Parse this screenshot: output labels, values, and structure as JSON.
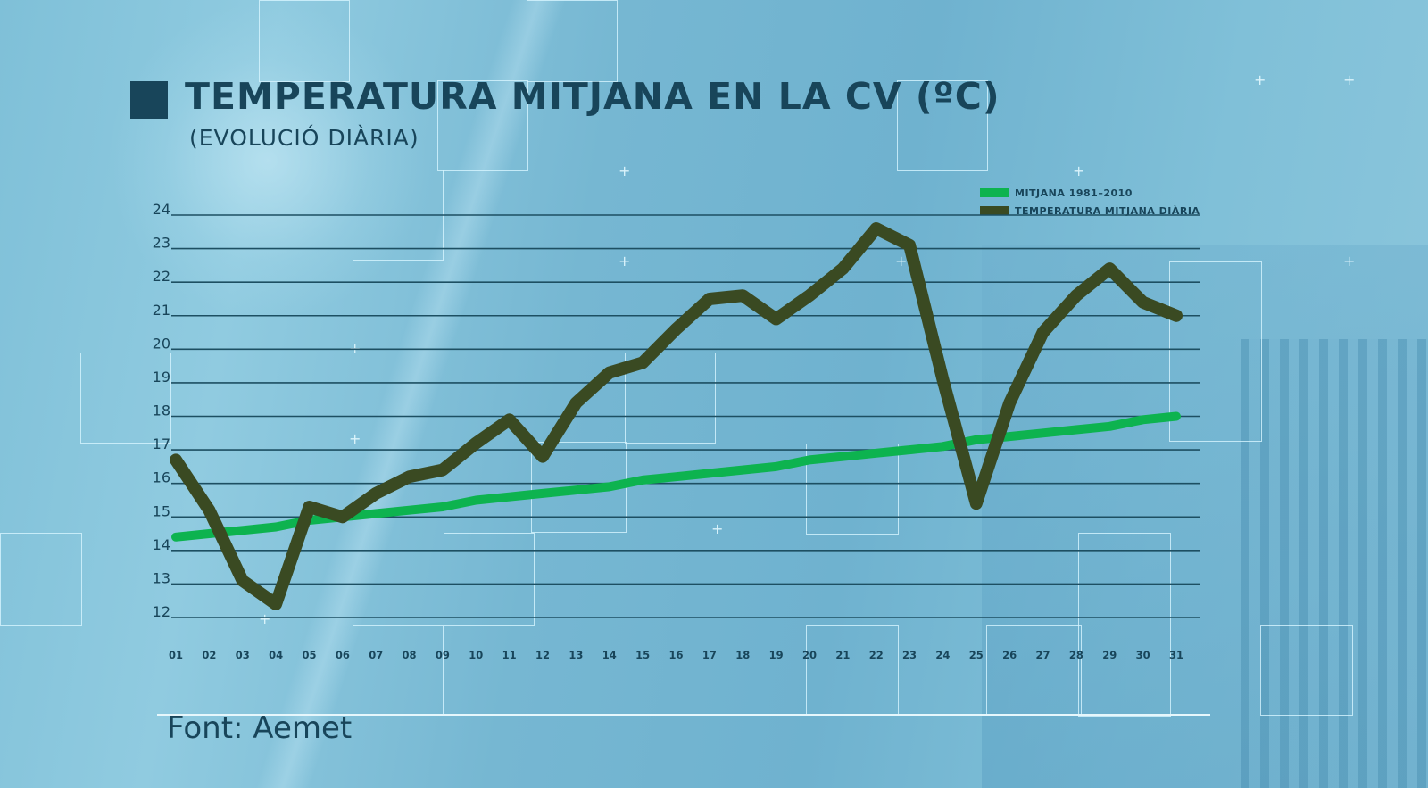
{
  "header": {
    "title": "TEMPERATURA MITJANA EN LA CV (ºC)",
    "subtitle": "(EVOLUCIÓ DIÀRIA)"
  },
  "legend": [
    {
      "label": "MITJANA 1981–2010",
      "color": "#0db34f"
    },
    {
      "label": "TEMPERATURA MITJANA DIÀRIA",
      "color": "#3a4a22"
    }
  ],
  "footer": {
    "source": "Font: Aemet"
  },
  "colors": {
    "text": "#18455a",
    "gridline": "#1d4f62",
    "normal_line": "#0db34f",
    "daily_line": "#3a4a22"
  },
  "chart_data": {
    "type": "line",
    "title": "TEMPERATURA MITJANA EN LA CV (ºC)",
    "subtitle": "(EVOLUCIÓ DIÀRIA)",
    "xlabel": "",
    "ylabel": "",
    "ylim": [
      12,
      24
    ],
    "yticks": [
      24,
      23,
      22,
      21,
      20,
      19,
      18,
      17,
      16,
      15,
      14,
      13,
      12
    ],
    "grid": true,
    "legend_position": "top-right",
    "categories": [
      "01",
      "02",
      "03",
      "04",
      "05",
      "06",
      "07",
      "08",
      "09",
      "10",
      "11",
      "12",
      "13",
      "14",
      "15",
      "16",
      "17",
      "18",
      "19",
      "20",
      "21",
      "22",
      "23",
      "24",
      "25",
      "26",
      "27",
      "28",
      "29",
      "30",
      "31"
    ],
    "series": [
      {
        "name": "MITJANA 1981–2010",
        "values": [
          14.4,
          14.5,
          14.6,
          14.7,
          14.9,
          15.0,
          15.1,
          15.2,
          15.3,
          15.5,
          15.6,
          15.7,
          15.8,
          15.9,
          16.1,
          16.2,
          16.3,
          16.4,
          16.5,
          16.7,
          16.8,
          16.9,
          17.0,
          17.1,
          17.3,
          17.4,
          17.5,
          17.6,
          17.7,
          17.9,
          18.0
        ]
      },
      {
        "name": "TEMPERATURA MITJANA DIÀRIA",
        "values": [
          16.7,
          15.2,
          13.1,
          12.4,
          15.3,
          15.0,
          15.7,
          16.2,
          16.4,
          17.2,
          17.9,
          16.8,
          18.4,
          19.3,
          19.6,
          20.6,
          21.5,
          21.6,
          20.9,
          21.6,
          22.4,
          23.6,
          23.1,
          19.1,
          15.4,
          18.4,
          20.5,
          21.6,
          22.4,
          21.4,
          21.0
        ]
      }
    ]
  }
}
